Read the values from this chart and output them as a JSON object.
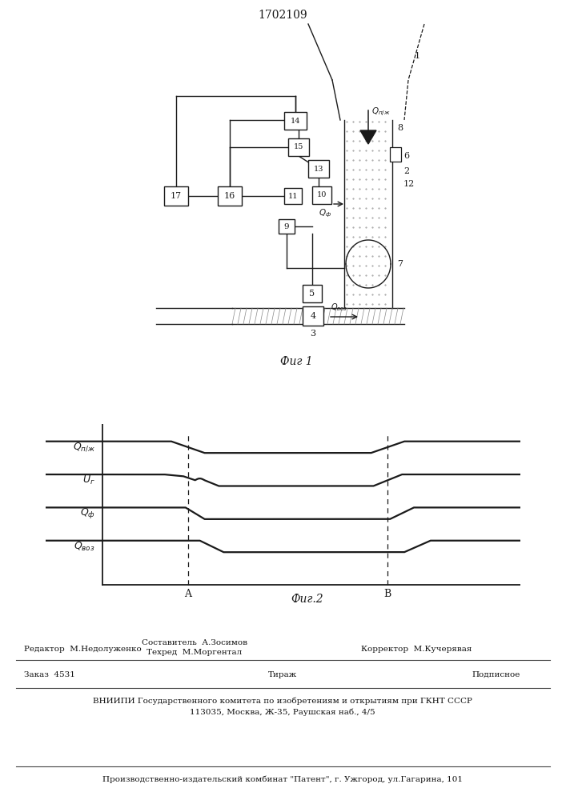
{
  "patent_number": "1702109",
  "fig1_caption": "Фиг 1",
  "fig2_caption": "Фиг.2",
  "line_color": "#1a1a1a",
  "label_A": "A",
  "label_B": "B"
}
